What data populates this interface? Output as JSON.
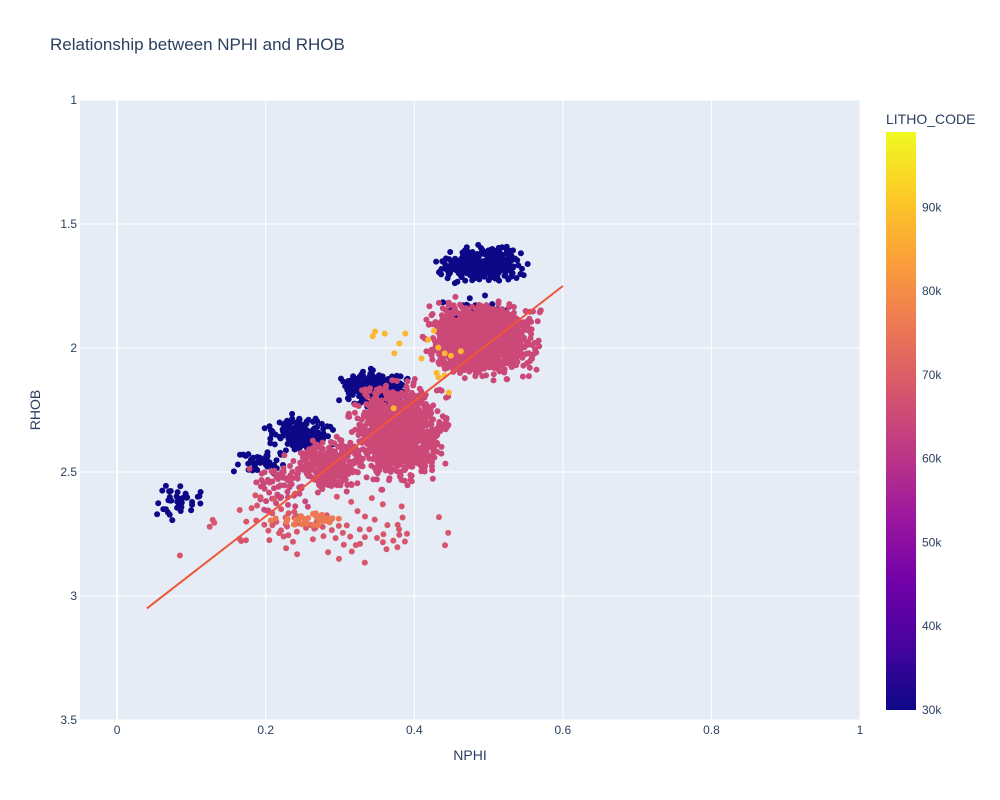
{
  "chart_data": {
    "type": "scatter",
    "title": "Relationship between NPHI and RHOB",
    "xlabel": "NPHI",
    "ylabel": "RHOB",
    "xlim": [
      -0.05,
      1.0
    ],
    "ylim": [
      1.0,
      3.5
    ],
    "y_reversed": true,
    "x_ticks": [
      0,
      0.2,
      0.4,
      0.6,
      0.8,
      1
    ],
    "x_tick_labels": [
      "0",
      "0.2",
      "0.4",
      "0.6",
      "0.8",
      "1"
    ],
    "y_ticks": [
      1,
      1.5,
      2,
      2.5,
      3,
      3.5
    ],
    "y_tick_labels": [
      "1",
      "1.5",
      "2",
      "2.5",
      "3",
      "3.5"
    ],
    "grid": true,
    "colorbar": {
      "title": "LITHO_CODE",
      "range": [
        30000,
        99000
      ],
      "ticks": [
        30000,
        40000,
        50000,
        60000,
        70000,
        80000,
        90000
      ],
      "tick_labels": [
        "30k",
        "40k",
        "50k",
        "60k",
        "70k",
        "80k",
        "90k"
      ],
      "colors": [
        "#0d0887",
        "#46039f",
        "#7201a8",
        "#9c179e",
        "#bd3786",
        "#d8576b",
        "#ed7953",
        "#fb9f3a",
        "#fdca26",
        "#f0f921"
      ]
    },
    "trendline": {
      "x": [
        0.04,
        0.6
      ],
      "y": [
        3.05,
        1.75
      ],
      "color": "#ef553b"
    },
    "clusters": [
      {
        "litho": 30000,
        "count": 380,
        "x": [
          0.42,
          0.56
        ],
        "y": [
          1.58,
          1.75
        ]
      },
      {
        "litho": 30000,
        "count": 40,
        "x": [
          0.4,
          0.55
        ],
        "y": [
          1.75,
          1.95
        ]
      },
      {
        "litho": 30000,
        "count": 260,
        "x": [
          0.29,
          0.4
        ],
        "y": [
          2.07,
          2.25
        ]
      },
      {
        "litho": 30000,
        "count": 170,
        "x": [
          0.19,
          0.3
        ],
        "y": [
          2.25,
          2.45
        ]
      },
      {
        "litho": 30000,
        "count": 45,
        "x": [
          0.15,
          0.24
        ],
        "y": [
          2.4,
          2.52
        ]
      },
      {
        "litho": 30000,
        "count": 40,
        "x": [
          0.04,
          0.13
        ],
        "y": [
          2.52,
          2.72
        ]
      },
      {
        "litho": 65000,
        "count": 1500,
        "x": [
          0.4,
          0.58
        ],
        "y": [
          1.78,
          2.15
        ]
      },
      {
        "litho": 65000,
        "count": 1200,
        "x": [
          0.3,
          0.46
        ],
        "y": [
          2.1,
          2.58
        ]
      },
      {
        "litho": 65000,
        "count": 350,
        "x": [
          0.23,
          0.34
        ],
        "y": [
          2.35,
          2.6
        ]
      },
      {
        "litho": 65000,
        "count": 70,
        "x": [
          0.17,
          0.28
        ],
        "y": [
          2.4,
          2.7
        ]
      },
      {
        "litho": 68000,
        "count": 90,
        "x": [
          0.05,
          0.5
        ],
        "y": [
          2.55,
          2.9
        ]
      },
      {
        "litho": 76000,
        "count": 35,
        "x": [
          0.19,
          0.33
        ],
        "y": [
          2.65,
          2.74
        ]
      },
      {
        "litho": 88000,
        "count": 18,
        "x": [
          0.22,
          0.6
        ],
        "y": [
          1.8,
          2.3
        ]
      }
    ]
  }
}
